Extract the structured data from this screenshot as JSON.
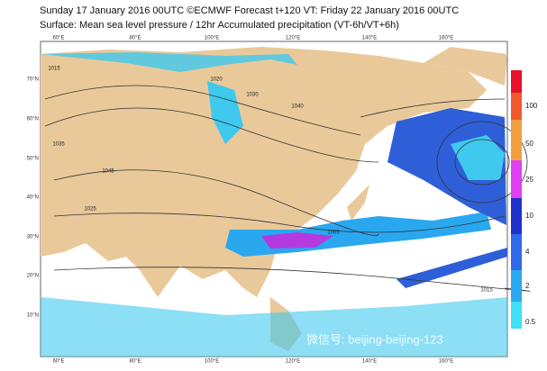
{
  "header": {
    "title": "Sunday 17 January 2016 00UTC ©ECMWF Forecast t+120 VT: Friday 22 January 2016 00UTC",
    "subtitle": "Surface: Mean sea level pressure / 12hr Accumulated precipitation (VT-6h/VT+6h)"
  },
  "map": {
    "longitudes": [
      "60°E",
      "80°E",
      "100°E",
      "120°E",
      "140°E",
      "160°E"
    ],
    "latitudes": [
      "70°N",
      "60°N",
      "50°N",
      "40°N",
      "30°N",
      "20°N",
      "10°N"
    ],
    "isobars": [
      "1015",
      "1020",
      "1030",
      "1035",
      "1040",
      "1045",
      "1025",
      "1005",
      "1015"
    ]
  },
  "legend": {
    "labels": [
      "100",
      "50",
      "25",
      "10",
      "4",
      "2",
      "0.5"
    ]
  },
  "watermark": "微信号: beijing-beijing-123"
}
